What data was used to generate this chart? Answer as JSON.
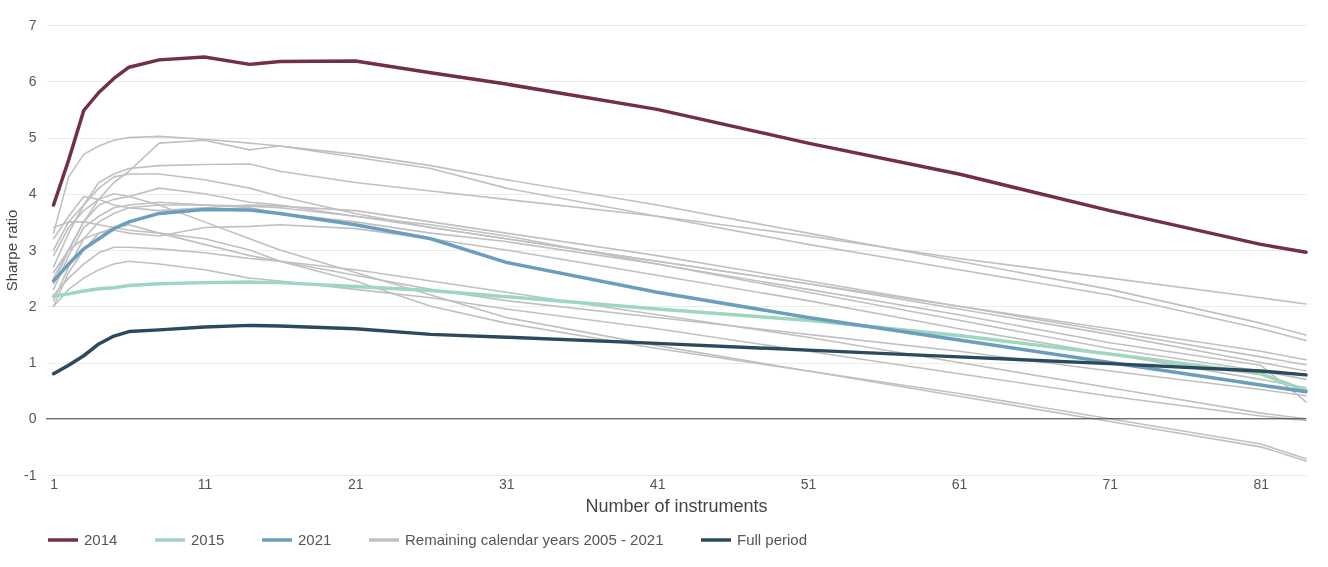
{
  "chart_data": {
    "type": "line",
    "xlabel": "Number of instruments",
    "ylabel": "Sharpe ratio",
    "x": [
      1,
      2,
      3,
      4,
      5,
      6,
      8,
      11,
      14,
      16,
      21,
      26,
      31,
      41,
      51,
      61,
      71,
      81,
      84
    ],
    "xlim": [
      0.5,
      84
    ],
    "xticks": [
      1,
      11,
      21,
      31,
      41,
      51,
      61,
      71,
      81
    ],
    "ylim": [
      -1,
      7
    ],
    "yticks": [
      -1,
      0,
      1,
      2,
      3,
      4,
      5,
      6,
      7
    ],
    "grid": "y",
    "legend": "bottom",
    "marker": "none",
    "line_style": "solid",
    "ref_lines": [
      {
        "axis": "y",
        "value": 0,
        "color": "#404040"
      }
    ],
    "series": [
      {
        "name": "2014",
        "color": "#722f45",
        "values": [
          3.8,
          4.6,
          5.48,
          5.8,
          6.05,
          6.25,
          6.38,
          6.43,
          6.3,
          6.35,
          6.36,
          6.15,
          5.95,
          5.5,
          4.9,
          4.35,
          3.7,
          3.1,
          2.96
        ]
      },
      {
        "name": "2015",
        "color": "#9fd6be",
        "values": [
          2.18,
          2.22,
          2.27,
          2.31,
          2.33,
          2.37,
          2.4,
          2.42,
          2.43,
          2.42,
          2.35,
          2.28,
          2.17,
          1.95,
          1.75,
          1.48,
          1.15,
          0.8,
          0.5
        ]
      },
      {
        "name": "2021",
        "color": "#6b9dbd",
        "values": [
          2.45,
          2.75,
          3.02,
          3.2,
          3.38,
          3.5,
          3.65,
          3.72,
          3.71,
          3.65,
          3.45,
          3.2,
          2.78,
          2.25,
          1.8,
          1.4,
          1.0,
          0.6,
          0.48
        ]
      },
      {
        "name": "Remaining calendar years 2005 - 2021",
        "color": "#c0c0c0",
        "values": [
          3.3,
          4.3,
          4.7,
          4.85,
          4.95,
          5.0,
          5.02,
          4.97,
          4.9,
          4.85,
          4.7,
          4.5,
          4.25,
          3.8,
          3.3,
          2.8,
          2.3,
          1.7,
          1.49
        ]
      },
      {
        "color": "#c0c0c0",
        "values": [
          2.4,
          3.0,
          3.5,
          3.9,
          4.2,
          4.4,
          4.9,
          4.95,
          4.78,
          4.85,
          4.65,
          4.45,
          4.1,
          3.6,
          3.1,
          2.65,
          2.2,
          1.6,
          1.39
        ]
      },
      {
        "color": "#c0c0c0",
        "values": [
          3.0,
          3.5,
          3.8,
          4.2,
          4.35,
          4.45,
          4.5,
          4.52,
          4.53,
          4.4,
          4.2,
          4.05,
          3.9,
          3.6,
          3.25,
          2.85,
          2.5,
          2.15,
          2.04
        ]
      },
      {
        "color": "#c0c0c0",
        "values": [
          2.7,
          3.3,
          3.8,
          4.1,
          4.3,
          4.35,
          4.35,
          4.25,
          4.1,
          3.95,
          3.65,
          3.4,
          3.2,
          2.8,
          2.4,
          2.0,
          1.6,
          1.2,
          1.05
        ]
      },
      {
        "color": "#c0c0c0",
        "values": [
          2.5,
          3.0,
          3.5,
          3.8,
          3.9,
          3.95,
          4.1,
          4.0,
          3.85,
          3.8,
          3.6,
          3.4,
          3.2,
          2.8,
          2.4,
          1.95,
          1.5,
          1.0,
          0.85
        ]
      },
      {
        "color": "#c0c0c0",
        "values": [
          3.2,
          3.6,
          3.95,
          3.9,
          3.8,
          3.75,
          3.7,
          3.75,
          3.8,
          3.78,
          3.7,
          3.5,
          3.3,
          2.9,
          2.45,
          2.0,
          1.55,
          1.1,
          0.96
        ]
      },
      {
        "color": "#c0c0c0",
        "values": [
          2.3,
          2.9,
          3.4,
          3.6,
          3.75,
          3.8,
          3.85,
          3.8,
          3.78,
          3.75,
          3.6,
          3.45,
          3.25,
          2.75,
          2.25,
          1.75,
          1.25,
          0.85,
          0.7
        ]
      },
      {
        "color": "#c0c0c0",
        "values": [
          2.6,
          3.0,
          3.2,
          3.3,
          3.35,
          3.3,
          3.25,
          3.4,
          3.42,
          3.45,
          3.38,
          3.2,
          3.0,
          2.55,
          2.1,
          1.6,
          1.15,
          0.7,
          0.55
        ]
      },
      {
        "color": "#c0c0c0",
        "values": [
          3.4,
          3.5,
          3.5,
          3.45,
          3.4,
          3.35,
          3.3,
          3.1,
          2.9,
          2.8,
          2.55,
          2.3,
          2.1,
          1.8,
          1.5,
          1.2,
          0.85,
          0.52,
          0.41
        ]
      },
      {
        "color": "#c0c0c0",
        "values": [
          2.2,
          2.5,
          2.75,
          2.95,
          3.05,
          3.05,
          3.02,
          2.95,
          2.85,
          2.8,
          2.65,
          2.45,
          2.25,
          1.85,
          1.45,
          1.0,
          0.55,
          0.1,
          0.0
        ]
      },
      {
        "color": "#c0c0c0",
        "values": [
          2.0,
          2.3,
          2.5,
          2.65,
          2.75,
          2.8,
          2.75,
          2.65,
          2.5,
          2.45,
          2.3,
          2.15,
          1.95,
          1.6,
          1.2,
          0.8,
          0.4,
          0.05,
          -0.03
        ]
      },
      {
        "color": "#c0c0c0",
        "values": [
          2.9,
          3.4,
          3.7,
          3.9,
          4.0,
          3.95,
          3.8,
          3.5,
          3.2,
          3.0,
          2.6,
          2.2,
          1.8,
          1.3,
          0.85,
          0.45,
          0.0,
          -0.45,
          -0.71
        ]
      },
      {
        "color": "#c0c0c0",
        "values": [
          2.0,
          2.6,
          3.0,
          3.3,
          3.4,
          3.45,
          3.3,
          3.2,
          3.0,
          2.8,
          2.45,
          2.0,
          1.7,
          1.25,
          0.85,
          0.4,
          -0.05,
          -0.5,
          -0.75
        ]
      },
      {
        "color": "#c0c0c0",
        "values": [
          2.1,
          2.7,
          3.2,
          3.5,
          3.65,
          3.75,
          3.8,
          3.8,
          3.75,
          3.65,
          3.5,
          3.3,
          3.15,
          2.75,
          2.3,
          1.85,
          1.35,
          0.95,
          0.3
        ]
      },
      {
        "name": "Full period",
        "color": "#2c4a5e",
        "values": [
          0.8,
          0.95,
          1.12,
          1.33,
          1.47,
          1.55,
          1.58,
          1.63,
          1.66,
          1.65,
          1.6,
          1.5,
          1.45,
          1.34,
          1.22,
          1.1,
          0.98,
          0.85,
          0.78
        ]
      }
    ]
  }
}
